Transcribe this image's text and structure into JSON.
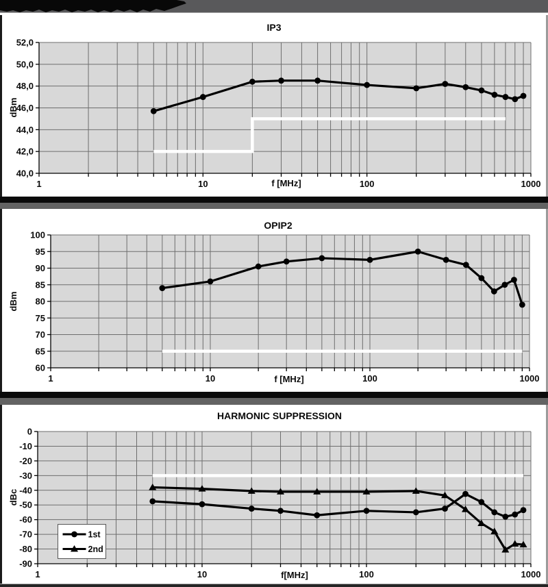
{
  "colors": {
    "plot_bg": "#d8d8d8",
    "grid": "#6e6e6e",
    "series": "#000000",
    "spec_white": "#ffffff",
    "panel_bg": "#ffffff",
    "header_gray": "#59595b",
    "separator_black": "#0a0a0a",
    "separator_gray": "#636363",
    "banner_black": "#080808",
    "legend_border": "#555555"
  },
  "chart_data": [
    {
      "type": "line",
      "title": "IP3",
      "xlabel": "f [MHz]",
      "ylabel": "dBm",
      "xscale": "log",
      "xlim": [
        1,
        1000
      ],
      "ylim": [
        40,
        52
      ],
      "ytick_step": 2,
      "ytick_labels": [
        "52,0",
        "50,0",
        "48,0",
        "46,0",
        "44,0",
        "42,0",
        "40,0"
      ],
      "xtick_labels": [
        "1",
        "10",
        "100",
        "1000"
      ],
      "grid": true,
      "legend": null,
      "series": [
        {
          "name": "IP3",
          "marker": "circle",
          "x": [
            5,
            10,
            20,
            30,
            50,
            100,
            200,
            300,
            400,
            500,
            600,
            700,
            800,
            900
          ],
          "y": [
            45.7,
            47.0,
            48.4,
            48.5,
            48.5,
            48.1,
            47.8,
            48.2,
            47.9,
            47.6,
            47.2,
            47.0,
            46.8,
            47.1
          ]
        }
      ],
      "spec_line": {
        "points": [
          [
            5,
            42
          ],
          [
            20,
            42
          ],
          [
            20,
            45
          ],
          [
            700,
            45
          ]
        ]
      }
    },
    {
      "type": "line",
      "title": "OPIP2",
      "xlabel": "f [MHz]",
      "ylabel": "dBm",
      "xscale": "log",
      "xlim": [
        1,
        1000
      ],
      "ylim": [
        60,
        100
      ],
      "ytick_step": 5,
      "ytick_labels": [
        "100",
        "95",
        "90",
        "85",
        "80",
        "75",
        "70",
        "65",
        "60"
      ],
      "xtick_labels": [
        "1",
        "10",
        "100",
        "1000"
      ],
      "grid": true,
      "legend": null,
      "series": [
        {
          "name": "OPIP2",
          "marker": "circle",
          "x": [
            5,
            10,
            20,
            30,
            50,
            100,
            200,
            300,
            400,
            500,
            600,
            700,
            800,
            900
          ],
          "y": [
            84,
            86,
            90.5,
            92,
            93,
            92.5,
            95,
            92.5,
            91,
            87,
            83,
            85,
            86.5,
            79
          ]
        }
      ],
      "spec_line": {
        "points": [
          [
            5,
            65
          ],
          [
            900,
            65
          ]
        ]
      }
    },
    {
      "type": "line",
      "title": "HARMONIC SUPPRESSION",
      "xlabel": "f[MHz]",
      "ylabel": "dBc",
      "xscale": "log",
      "xlim": [
        1,
        1000
      ],
      "ylim": [
        -90,
        0
      ],
      "ytick_step": 10,
      "ytick_labels": [
        "0",
        "-10",
        "-20",
        "-30",
        "-40",
        "-50",
        "-60",
        "-70",
        "-80",
        "-90"
      ],
      "xtick_labels": [
        "1",
        "10",
        "100",
        "1000"
      ],
      "grid": true,
      "legend": {
        "entries": [
          {
            "label": "1st",
            "marker": "circle"
          },
          {
            "label": "2nd",
            "marker": "triangle"
          }
        ]
      },
      "series": [
        {
          "name": "1st",
          "marker": "circle",
          "x": [
            5,
            10,
            20,
            30,
            50,
            100,
            200,
            300,
            400,
            500,
            600,
            700,
            800,
            900
          ],
          "y": [
            -47.5,
            -49.5,
            -52.5,
            -54,
            -57,
            -54,
            -55,
            -52.5,
            -42.5,
            -48,
            -55,
            -58,
            -56.5,
            -53.5
          ]
        },
        {
          "name": "2nd",
          "marker": "triangle",
          "x": [
            5,
            10,
            20,
            30,
            50,
            100,
            200,
            300,
            400,
            500,
            600,
            700,
            800,
            900
          ],
          "y": [
            -38,
            -39,
            -40.5,
            -41,
            -41,
            -41,
            -40.5,
            -43.5,
            -53,
            -62.5,
            -68,
            -80.5,
            -76.5,
            -77
          ]
        }
      ],
      "spec_line": {
        "points": [
          [
            5,
            -30
          ],
          [
            900,
            -30
          ]
        ]
      }
    }
  ]
}
